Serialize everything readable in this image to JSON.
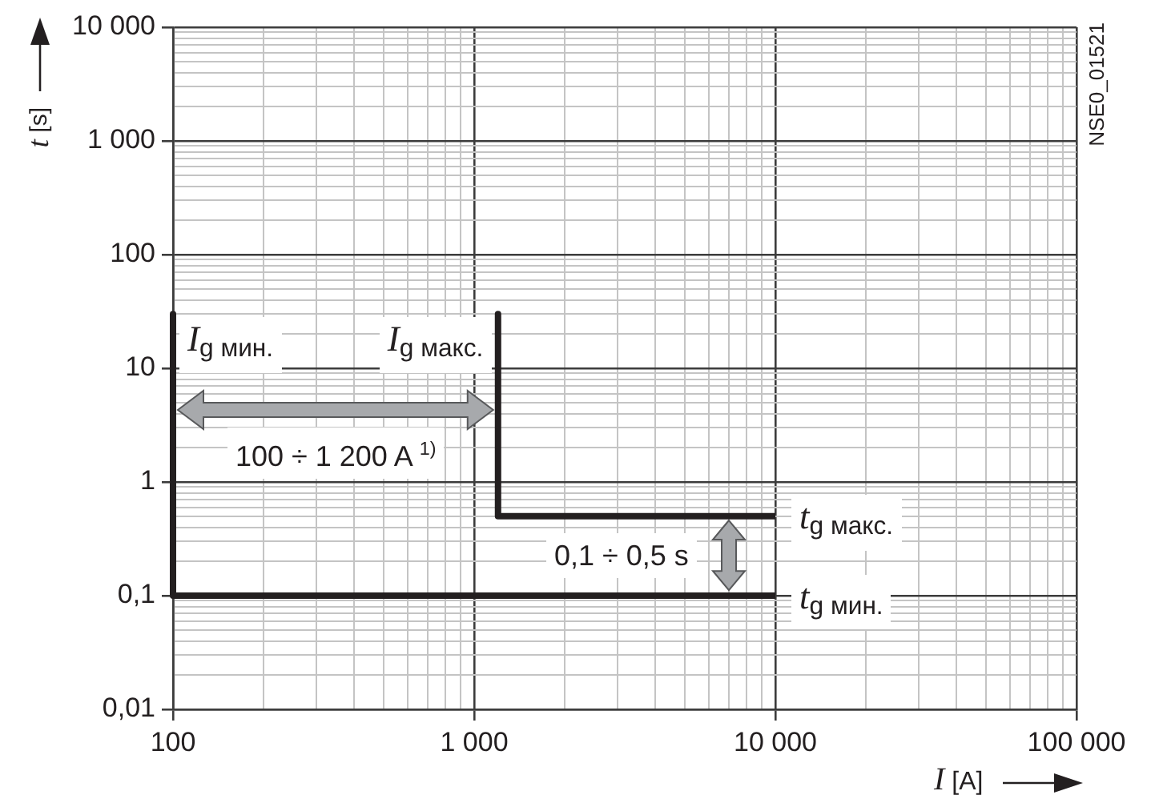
{
  "chart_data": {
    "type": "line",
    "xlabel": "I [A]",
    "ylabel": "t [s]",
    "log": "xy",
    "xlim": [
      100,
      100000
    ],
    "ylim": [
      0.01,
      10000
    ],
    "xticks": [
      100,
      {
        "value": 200,
        "label": null
      },
      {
        "value": 300,
        "label": null
      },
      {
        "value": 400,
        "label": null
      },
      {
        "value": 500,
        "label": null
      },
      {
        "value": 600,
        "label": null
      },
      {
        "value": 700,
        "label": null
      },
      {
        "value": 800,
        "label": null
      },
      {
        "value": 900,
        "label": null
      },
      {
        "value": 1000,
        "label": "1 000"
      },
      {
        "value": 2000,
        "label": null
      },
      {
        "value": 3000,
        "label": null
      },
      {
        "value": 4000,
        "label": null
      },
      {
        "value": 5000,
        "label": null
      },
      {
        "value": 6000,
        "label": null
      },
      {
        "value": 7000,
        "label": null
      },
      {
        "value": 8000,
        "label": null
      },
      {
        "value": 9000,
        "label": null
      },
      {
        "value": 10000,
        "label": "10 000"
      },
      {
        "value": 20000,
        "label": null
      },
      {
        "value": 30000,
        "label": null
      },
      {
        "value": 40000,
        "label": null
      },
      {
        "value": 50000,
        "label": null
      },
      {
        "value": 60000,
        "label": null
      },
      {
        "value": 70000,
        "label": null
      },
      {
        "value": 80000,
        "label": null
      },
      {
        "value": 90000,
        "label": null
      },
      {
        "value": 100000,
        "label": "100 000"
      }
    ],
    "yticks": [
      {
        "value": 0.01,
        "label": "0,01"
      },
      {
        "value": 0.02,
        "label": null
      },
      {
        "value": 0.03,
        "label": null
      },
      {
        "value": 0.04,
        "label": null
      },
      {
        "value": 0.05,
        "label": null
      },
      {
        "value": 0.06,
        "label": null
      },
      {
        "value": 0.07,
        "label": null
      },
      {
        "value": 0.08,
        "label": null
      },
      {
        "value": 0.09,
        "label": null
      },
      {
        "value": 0.1,
        "label": "0,1"
      },
      {
        "value": 0.2,
        "label": null
      },
      {
        "value": 0.3,
        "label": null
      },
      {
        "value": 0.4,
        "label": null
      },
      {
        "value": 0.5,
        "label": null
      },
      {
        "value": 0.6,
        "label": null
      },
      {
        "value": 0.7,
        "label": null
      },
      {
        "value": 0.8,
        "label": null
      },
      {
        "value": 0.9,
        "label": null
      },
      1,
      {
        "value": 2,
        "label": null
      },
      {
        "value": 3,
        "label": null
      },
      {
        "value": 4,
        "label": null
      },
      {
        "value": 5,
        "label": null
      },
      {
        "value": 6,
        "label": null
      },
      {
        "value": 7,
        "label": null
      },
      {
        "value": 8,
        "label": null
      },
      {
        "value": 9,
        "label": null
      },
      10,
      {
        "value": 20,
        "label": null
      },
      {
        "value": 30,
        "label": null
      },
      {
        "value": 40,
        "label": null
      },
      {
        "value": 50,
        "label": null
      },
      {
        "value": 60,
        "label": null
      },
      {
        "value": 70,
        "label": null
      },
      {
        "value": 80,
        "label": null
      },
      {
        "value": 90,
        "label": null
      },
      100,
      {
        "value": 200,
        "label": null
      },
      {
        "value": 300,
        "label": null
      },
      {
        "value": 400,
        "label": null
      },
      {
        "value": 500,
        "label": null
      },
      {
        "value": 600,
        "label": null
      },
      {
        "value": 700,
        "label": null
      },
      {
        "value": 800,
        "label": null
      },
      {
        "value": 900,
        "label": null
      },
      {
        "value": 1000,
        "label": "1 000"
      },
      {
        "value": 2000,
        "label": null
      },
      {
        "value": 3000,
        "label": null
      },
      {
        "value": 4000,
        "label": null
      },
      {
        "value": 5000,
        "label": null
      },
      {
        "value": 6000,
        "label": null
      },
      {
        "value": 7000,
        "label": null
      },
      {
        "value": 8000,
        "label": null
      },
      {
        "value": 9000,
        "label": null
      },
      {
        "value": 10000,
        "label": "10 000"
      }
    ],
    "grid": true,
    "marker": "none",
    "line_style": "solid",
    "series": [
      {
        "color": "#231f20",
        "x": [
          100,
          100,
          10000
        ],
        "values": [
          30,
          0.1,
          0.1
        ]
      },
      {
        "color": "#231f20",
        "x": [
          1200,
          1200,
          10000
        ],
        "values": [
          30,
          0.5,
          0.5
        ]
      }
    ],
    "annotations": [
      "I$_{g мин.}$",
      "I$_{g макс.}$",
      "100 ÷ 1 200 A $^{1)}$",
      "0,1 ÷ 0,5 s",
      "t$_{g макс.}$",
      "t$_{g мин.}$",
      "NSE0_01521"
    ]
  }
}
